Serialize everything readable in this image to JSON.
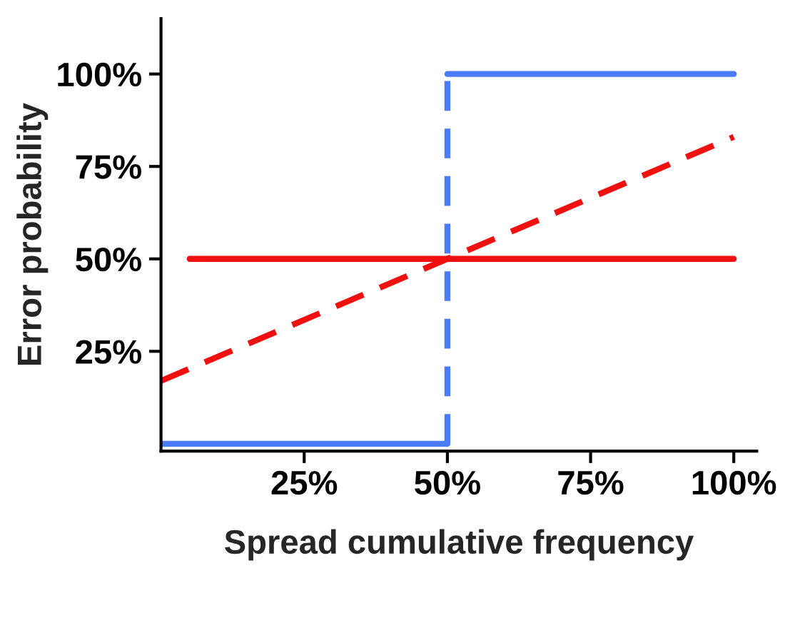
{
  "chart_data": {
    "type": "line",
    "xlabel": "Spread cumulative frequency",
    "ylabel": "Error probability",
    "xlim": [
      0,
      104
    ],
    "ylim": [
      -2,
      115
    ],
    "xticks": [
      {
        "value": 25,
        "label": "25%"
      },
      {
        "value": 50,
        "label": "50%"
      },
      {
        "value": 75,
        "label": "75%"
      },
      {
        "value": 100,
        "label": "100%"
      }
    ],
    "yticks": [
      {
        "value": 25,
        "label": "25%"
      },
      {
        "value": 50,
        "label": "50%"
      },
      {
        "value": 75,
        "label": "75%"
      },
      {
        "value": 100,
        "label": "100%"
      }
    ],
    "grid": false,
    "legend": false,
    "series": [
      {
        "color": "#4a7cf7",
        "x": [
          0,
          50
        ],
        "values": [
          0,
          0
        ],
        "line_style": "solid"
      },
      {
        "color": "#4a7cf7",
        "x": [
          50,
          100
        ],
        "values": [
          100,
          100
        ],
        "line_style": "solid"
      },
      {
        "color": "#4a7cf7",
        "x": [
          50,
          50
        ],
        "values": [
          0,
          100
        ],
        "line_style": "dashed"
      },
      {
        "color": "#f01010",
        "x": [
          5,
          100
        ],
        "values": [
          50,
          50
        ],
        "line_style": "solid"
      },
      {
        "color": "#f01010",
        "x": [
          0,
          100
        ],
        "values": [
          17,
          83
        ],
        "line_style": "dashed"
      }
    ]
  }
}
